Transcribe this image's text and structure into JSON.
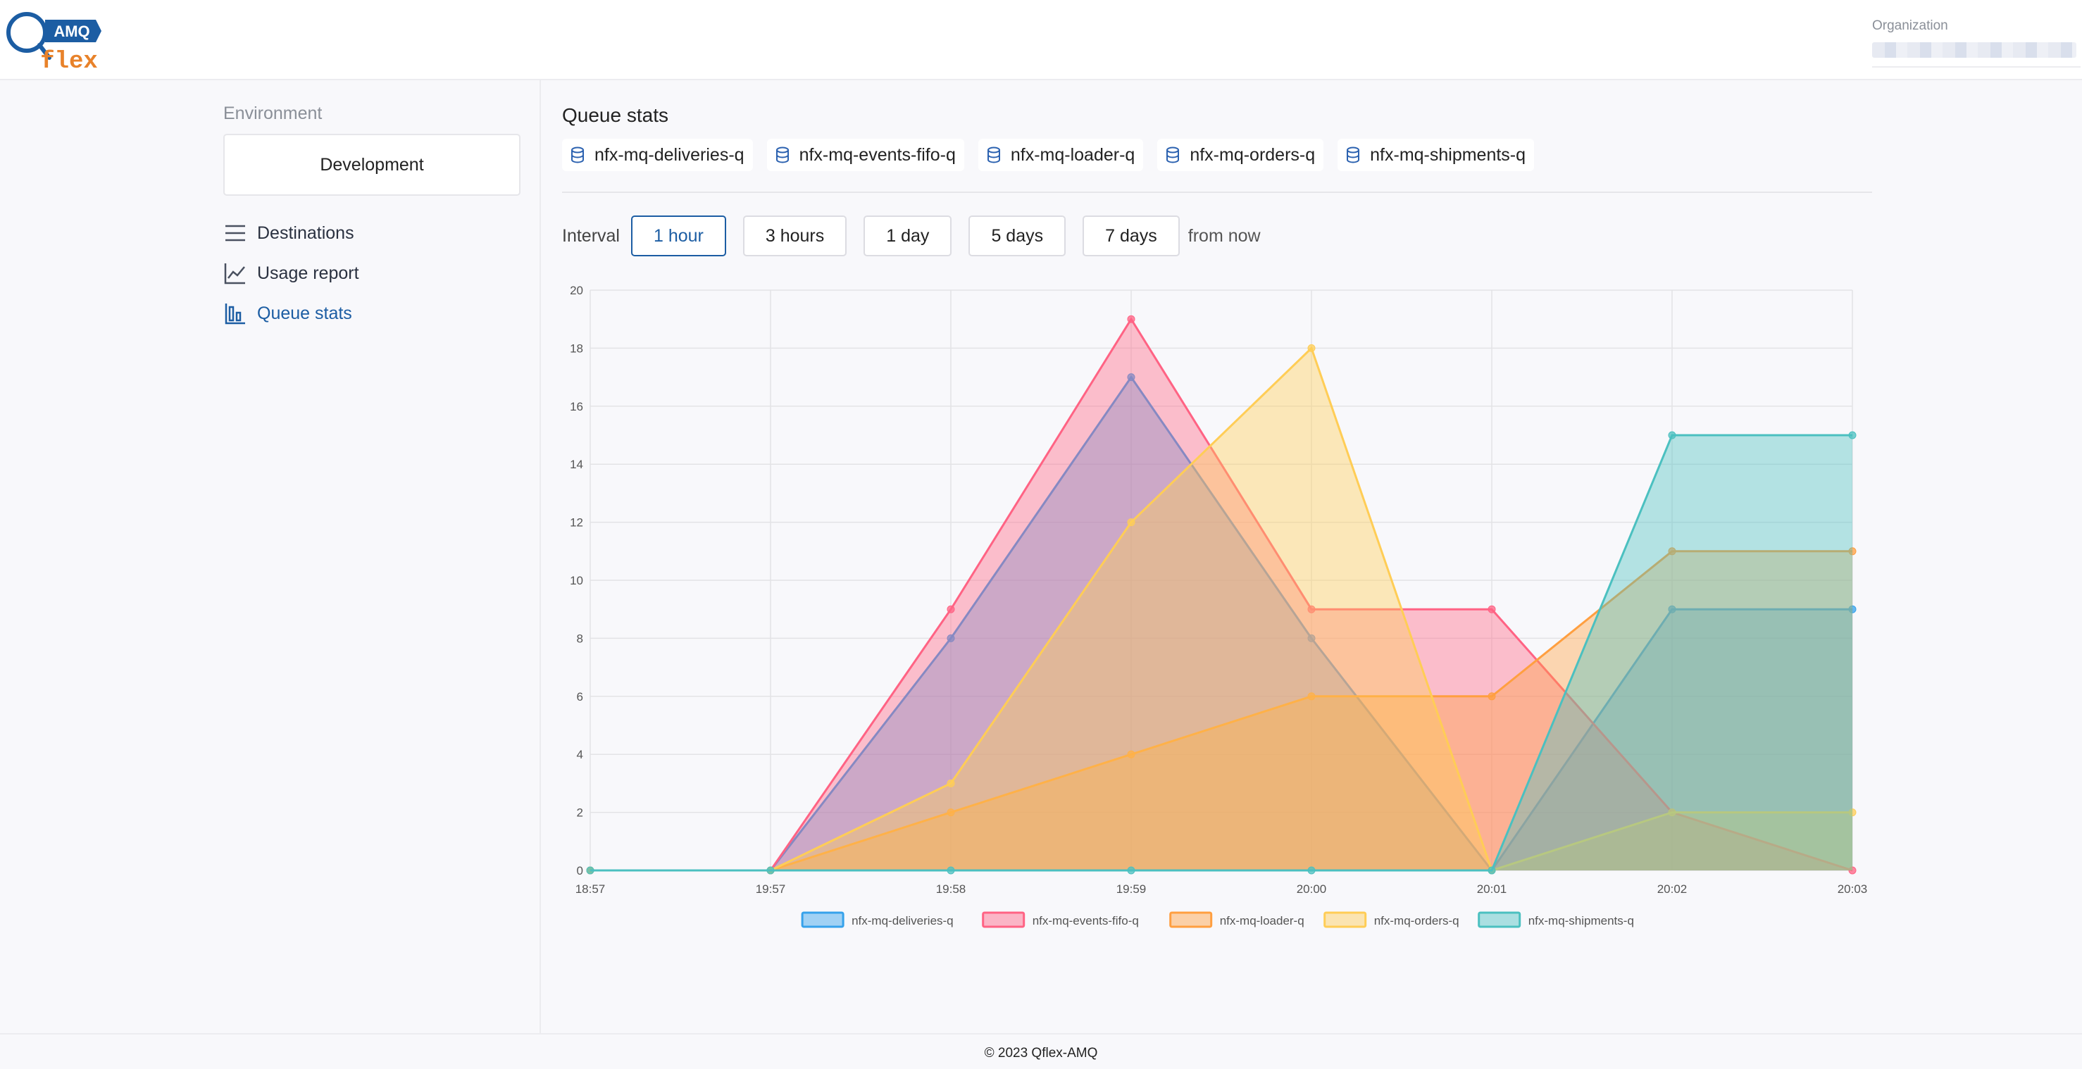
{
  "header": {
    "logo_top": "AMQ",
    "logo_bottom": "flex",
    "org_label": "Organization"
  },
  "sidebar": {
    "env_label": "Environment",
    "env_value": "Development",
    "items": [
      {
        "label": "Destinations",
        "icon": "menu-icon"
      },
      {
        "label": "Usage report",
        "icon": "trend-icon"
      },
      {
        "label": "Queue stats",
        "icon": "bar-chart-icon",
        "active": true
      }
    ]
  },
  "main": {
    "title": "Queue stats",
    "queues": [
      "nfx-mq-deliveries-q",
      "nfx-mq-events-fifo-q",
      "nfx-mq-loader-q",
      "nfx-mq-orders-q",
      "nfx-mq-shipments-q"
    ],
    "interval_label": "Interval",
    "intervals": [
      "1 hour",
      "3 hours",
      "1 day",
      "5 days",
      "7 days"
    ],
    "interval_active": "1 hour",
    "from_now": "from now"
  },
  "chart_data": {
    "type": "area",
    "x": [
      "18:57",
      "19:57",
      "19:58",
      "19:59",
      "20:00",
      "20:01",
      "20:02",
      "20:03"
    ],
    "ylim": [
      0,
      20
    ],
    "yticks": [
      0,
      2,
      4,
      6,
      8,
      10,
      12,
      14,
      16,
      18,
      20
    ],
    "grid": true,
    "legend": "bottom",
    "series": [
      {
        "name": "nfx-mq-deliveries-q",
        "color": "#36a2eb",
        "values": [
          0,
          0,
          8,
          17,
          8,
          0,
          9,
          9
        ]
      },
      {
        "name": "nfx-mq-events-fifo-q",
        "color": "#ff6384",
        "values": [
          0,
          0,
          9,
          19,
          9,
          9,
          2,
          0
        ]
      },
      {
        "name": "nfx-mq-loader-q",
        "color": "#ff9f40",
        "values": [
          0,
          0,
          2,
          4,
          6,
          6,
          11,
          11
        ]
      },
      {
        "name": "nfx-mq-orders-q",
        "color": "#ffcd56",
        "values": [
          0,
          0,
          3,
          12,
          18,
          0,
          2,
          2
        ]
      },
      {
        "name": "nfx-mq-shipments-q",
        "color": "#4bc0c0",
        "values": [
          0,
          0,
          0,
          0,
          0,
          0,
          15,
          15
        ]
      }
    ]
  },
  "footer": {
    "text": "© 2023 Qflex-AMQ"
  }
}
